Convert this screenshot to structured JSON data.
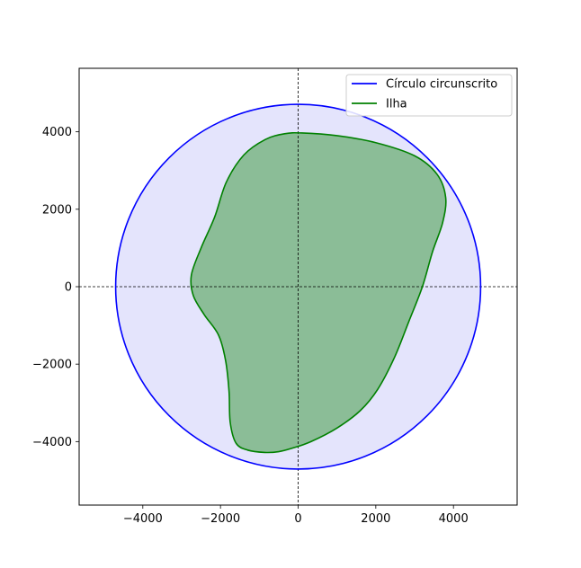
{
  "chart_data": {
    "type": "line",
    "title": "",
    "xlabel": "",
    "ylabel": "",
    "xlim": [
      -5640,
      5640
    ],
    "ylim": [
      -5640,
      5640
    ],
    "aspect": "equal",
    "grid": false,
    "crosshair_at": [
      0,
      0
    ],
    "x_ticks": [
      -4000,
      -2000,
      0,
      2000,
      4000
    ],
    "y_ticks": [
      -4000,
      -2000,
      0,
      2000,
      4000
    ],
    "x_tick_labels": [
      "−4000",
      "−2000",
      "0",
      "2000",
      "4000"
    ],
    "y_tick_labels": [
      "−4000",
      "−2000",
      "0",
      "2000",
      "4000"
    ],
    "legend_position": "top-right",
    "series": [
      {
        "name": "Círculo circunscrito",
        "shape": "circle",
        "center": [
          0,
          0
        ],
        "radius": 4700,
        "color": "#0000ff",
        "fill": "#e4e4fc"
      },
      {
        "name": "Ilha",
        "shape": "closed-curve",
        "color": "#008000",
        "fill": "#8bbd97",
        "points": [
          [
            100,
            3970
          ],
          [
            1000,
            3900
          ],
          [
            2000,
            3720
          ],
          [
            3000,
            3380
          ],
          [
            3580,
            2900
          ],
          [
            3800,
            2300
          ],
          [
            3720,
            1650
          ],
          [
            3460,
            900
          ],
          [
            3200,
            0
          ],
          [
            2850,
            -900
          ],
          [
            2480,
            -1830
          ],
          [
            2050,
            -2650
          ],
          [
            1600,
            -3200
          ],
          [
            1000,
            -3650
          ],
          [
            330,
            -4000
          ],
          [
            -150,
            -4170
          ],
          [
            -500,
            -4260
          ],
          [
            -860,
            -4280
          ],
          [
            -1300,
            -4220
          ],
          [
            -1600,
            -4040
          ],
          [
            -1750,
            -3500
          ],
          [
            -1780,
            -2700
          ],
          [
            -1870,
            -1900
          ],
          [
            -2050,
            -1250
          ],
          [
            -2420,
            -720
          ],
          [
            -2700,
            -230
          ],
          [
            -2750,
            300
          ],
          [
            -2500,
            1000
          ],
          [
            -2150,
            1800
          ],
          [
            -1850,
            2700
          ],
          [
            -1400,
            3400
          ],
          [
            -850,
            3800
          ],
          [
            -350,
            3950
          ]
        ]
      }
    ]
  }
}
